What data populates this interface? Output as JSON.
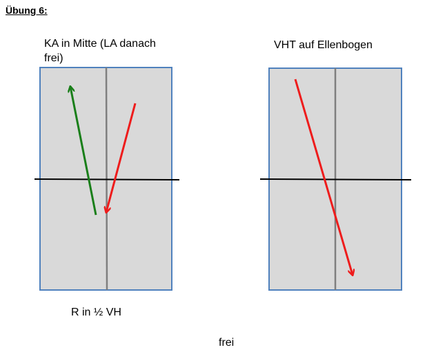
{
  "heading": "Übung 6:",
  "left_panel": {
    "caption_line1": "KA in Mitte (LA danach",
    "caption_line2": "frei)",
    "bottom_label": "R in ½ VH"
  },
  "right_panel": {
    "caption": "VHT auf Ellenbogen"
  },
  "footer": "frei",
  "colors": {
    "field_fill": "#d9d9d9",
    "field_border": "#4f81bd",
    "center_line": "#7f7f7f",
    "halfway_line": "#000000",
    "green_arrow": "#1a7f1a",
    "red_arrow": "#ee1c1c"
  }
}
